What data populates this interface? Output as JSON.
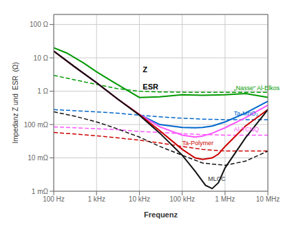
{
  "chart_data": {
    "type": "line",
    "log": true,
    "grid": true,
    "x_label": "Frequenz",
    "y_label": "Impedanz Z und  ESR  (Ω)",
    "xlim": [
      100,
      10000000
    ],
    "ylim": [
      0.001,
      200
    ],
    "xticks": [
      {
        "value": 100,
        "label": "100 Hz"
      },
      {
        "value": 1000,
        "label": "1 kHz"
      },
      {
        "value": 10000,
        "label": "10 kHz"
      },
      {
        "value": 100000,
        "label": "100 kHz"
      },
      {
        "value": 1000000,
        "label": "1 MHz"
      },
      {
        "value": 10000000,
        "label": "10 MHz"
      }
    ],
    "yticks": [
      {
        "value": 0.001,
        "label": "1 mΩ"
      },
      {
        "value": 0.01,
        "label": "10 mΩ"
      },
      {
        "value": 0.1,
        "label": "100 mΩ"
      },
      {
        "value": 1,
        "label": "1 Ω"
      },
      {
        "value": 10,
        "label": "10 Ω"
      },
      {
        "value": 100,
        "label": "100 Ω"
      }
    ],
    "series": [
      {
        "color": "#009900",
        "line_style": "solid",
        "x": [
          100,
          200,
          500,
          1000,
          2000,
          5000,
          10000,
          30000,
          100000,
          300000,
          1000000,
          3000000,
          10000000
        ],
        "values": [
          20,
          14,
          7,
          3.8,
          2.2,
          1.1,
          0.65,
          0.68,
          0.78,
          0.75,
          0.78,
          0.85,
          0.65
        ]
      },
      {
        "color": "#009900",
        "line_style": "dashed",
        "x": [
          100,
          300,
          1000,
          3000,
          10000,
          30000,
          100000,
          300000,
          1000000,
          3000000,
          10000000
        ],
        "values": [
          3.0,
          2.2,
          1.6,
          1.2,
          1.0,
          0.95,
          0.93,
          0.92,
          0.92,
          0.92,
          0.92
        ]
      },
      {
        "color": "#0066cc",
        "line_style": "solid",
        "x": [
          100,
          300,
          1000,
          3000,
          10000,
          30000,
          100000,
          200000,
          300000,
          500000,
          1000000,
          3000000,
          10000000
        ],
        "values": [
          16,
          5.5,
          1.8,
          0.6,
          0.2,
          0.1,
          0.082,
          0.08,
          0.082,
          0.09,
          0.12,
          0.22,
          0.5
        ]
      },
      {
        "color": "#0066cc",
        "line_style": "dashed",
        "x": [
          100,
          300,
          1000,
          3000,
          10000,
          30000,
          100000,
          300000,
          1000000,
          3000000,
          10000000
        ],
        "values": [
          0.28,
          0.26,
          0.24,
          0.22,
          0.19,
          0.17,
          0.155,
          0.145,
          0.14,
          0.14,
          0.14
        ]
      },
      {
        "color": "#ff55ff",
        "line_style": "solid",
        "x": [
          100,
          300,
          1000,
          3000,
          10000,
          30000,
          100000,
          200000,
          300000,
          500000,
          1000000,
          3000000,
          10000000
        ],
        "values": [
          16,
          5.5,
          1.8,
          0.6,
          0.2,
          0.085,
          0.048,
          0.042,
          0.045,
          0.055,
          0.08,
          0.16,
          0.38
        ]
      },
      {
        "color": "#ff55ff",
        "line_style": "dashed",
        "x": [
          100,
          300,
          1000,
          3000,
          10000,
          30000,
          100000,
          300000,
          1000000,
          3000000,
          10000000
        ],
        "values": [
          0.085,
          0.08,
          0.075,
          0.07,
          0.062,
          0.058,
          0.053,
          0.05,
          0.048,
          0.048,
          0.048
        ]
      },
      {
        "color": "#cc0000",
        "line_style": "solid",
        "x": [
          100,
          300,
          1000,
          3000,
          10000,
          30000,
          100000,
          200000,
          300000,
          500000,
          700000,
          1000000,
          3000000,
          10000000
        ],
        "values": [
          16,
          5.5,
          1.8,
          0.6,
          0.2,
          0.065,
          0.018,
          0.01,
          0.009,
          0.01,
          0.013,
          0.022,
          0.09,
          0.28
        ]
      },
      {
        "color": "#cc0000",
        "line_style": "dashed",
        "x": [
          100,
          300,
          1000,
          3000,
          10000,
          30000,
          100000,
          300000,
          1000000,
          3000000,
          10000000
        ],
        "values": [
          0.058,
          0.052,
          0.046,
          0.04,
          0.034,
          0.028,
          0.022,
          0.018,
          0.016,
          0.016,
          0.016
        ]
      },
      {
        "color": "#111111",
        "line_style": "solid",
        "x": [
          100,
          300,
          1000,
          3000,
          10000,
          30000,
          100000,
          200000,
          350000,
          500000,
          700000,
          1000000,
          3000000,
          10000000
        ],
        "values": [
          16,
          5.5,
          1.8,
          0.6,
          0.19,
          0.055,
          0.012,
          0.004,
          0.0015,
          0.0012,
          0.0018,
          0.005,
          0.04,
          0.28
        ]
      },
      {
        "color": "#111111",
        "line_style": "dashed",
        "x": [
          100,
          300,
          1000,
          3000,
          10000,
          30000,
          100000,
          300000,
          1000000,
          3000000,
          10000000
        ],
        "values": [
          0.24,
          0.18,
          0.12,
          0.075,
          0.042,
          0.022,
          0.012,
          0.007,
          0.006,
          0.008,
          0.016
        ]
      }
    ],
    "annotations": [
      {
        "text": "Z",
        "x": 12000,
        "y": 4.5
      },
      {
        "text": "ESR",
        "x": 12000,
        "y": 1.35
      },
      {
        "text": "„Nasse“ Al-Elkos",
        "x": 1600000,
        "y": 1.25,
        "color": "#009900"
      },
      {
        "text": "Ta-MnO₂",
        "x": 1600000,
        "y": 0.21,
        "color": "#0066cc"
      },
      {
        "text": "Al-TCNQ",
        "x": 1600000,
        "y": 0.072,
        "color": "#ff55ff"
      },
      {
        "text": "Ta-Polymer",
        "x": 100000,
        "y": 0.028,
        "color": "#cc0000"
      },
      {
        "text": "MLCC",
        "x": 400000,
        "y": 0.0023,
        "color": "#333333"
      }
    ]
  }
}
